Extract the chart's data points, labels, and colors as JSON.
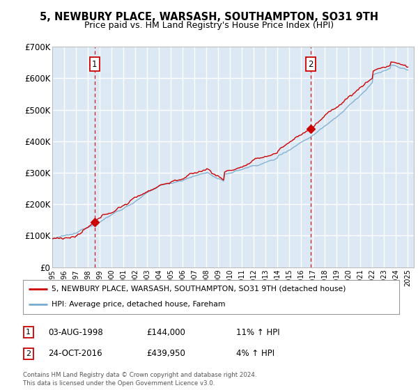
{
  "title": "5, NEWBURY PLACE, WARSASH, SOUTHAMPTON, SO31 9TH",
  "subtitle": "Price paid vs. HM Land Registry's House Price Index (HPI)",
  "legend_line1": "5, NEWBURY PLACE, WARSASH, SOUTHAMPTON, SO31 9TH (detached house)",
  "legend_line2": "HPI: Average price, detached house, Fareham",
  "annotation1_date": "03-AUG-1998",
  "annotation1_price": "£144,000",
  "annotation1_hpi": "11% ↑ HPI",
  "annotation1_year": 1998.58,
  "annotation1_value": 144000,
  "annotation2_date": "24-OCT-2016",
  "annotation2_price": "£439,950",
  "annotation2_hpi": "4% ↑ HPI",
  "annotation2_year": 2016.81,
  "annotation2_value": 439950,
  "yticks": [
    0,
    100000,
    200000,
    300000,
    400000,
    500000,
    600000,
    700000
  ],
  "ytick_labels": [
    "£0",
    "£100K",
    "£200K",
    "£300K",
    "£400K",
    "£500K",
    "£600K",
    "£700K"
  ],
  "background_color": "#dce9f5",
  "grid_color": "#ffffff",
  "red_line_color": "#cc0000",
  "blue_line_color": "#7aabcf",
  "dashed_line_color": "#cc0000",
  "footer": "Contains HM Land Registry data © Crown copyright and database right 2024.\nThis data is licensed under the Open Government Licence v3.0.",
  "xmin": 1995,
  "xmax": 2025.5,
  "ymin": 0,
  "ymax": 700000
}
